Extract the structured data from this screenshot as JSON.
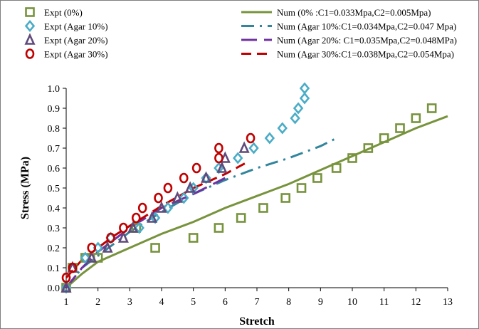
{
  "chart_data": {
    "type": "scatter",
    "title": "",
    "xlabel": "Stretch",
    "ylabel": "Stress (MPa)",
    "xlim": [
      1,
      13
    ],
    "ylim": [
      0,
      1.0
    ],
    "x_ticks": [
      1,
      2,
      3,
      4,
      5,
      6,
      7,
      8,
      9,
      10,
      11,
      12,
      13
    ],
    "y_ticks": [
      0.0,
      0.1,
      0.2,
      0.3,
      0.4,
      0.5,
      0.6,
      0.7,
      0.8,
      0.9,
      1.0
    ],
    "y_tick_labels": [
      "0.0",
      "0.1",
      "0.2",
      "0.3",
      "0.4",
      "0.5",
      "0.6",
      "0.7",
      "0.8",
      "0.9",
      "1.0"
    ],
    "x_tick_labels": [
      "1",
      "2",
      "3",
      "4",
      "5",
      "6",
      "7",
      "8",
      "9",
      "10",
      "11",
      "12",
      "13"
    ],
    "grid": false,
    "legend_placement": "top",
    "series": [
      {
        "name": "Expt (0%)",
        "kind": "scatter",
        "marker": "square",
        "color": "#77933c",
        "x": [
          1,
          1.2,
          1.6,
          2.0,
          3.2,
          3.8,
          5.0,
          5.8,
          6.5,
          7.2,
          7.9,
          8.4,
          8.9,
          9.5,
          10.0,
          10.5,
          11.0,
          11.5,
          12.0,
          12.5
        ],
        "y": [
          0.0,
          0.1,
          0.15,
          0.15,
          0.3,
          0.2,
          0.25,
          0.3,
          0.35,
          0.4,
          0.45,
          0.5,
          0.55,
          0.6,
          0.65,
          0.7,
          0.75,
          0.8,
          0.85,
          0.9
        ]
      },
      {
        "name": "Expt (Agar 10%)",
        "kind": "scatter",
        "marker": "diamond",
        "color": "#4bacc6",
        "x": [
          1,
          1.6,
          2.0,
          2.4,
          3.3,
          3.8,
          4.2,
          4.7,
          5.0,
          5.4,
          5.8,
          6.4,
          6.9,
          7.4,
          7.8,
          8.2,
          8.3,
          8.5,
          8.5
        ],
        "y": [
          0.0,
          0.15,
          0.2,
          0.25,
          0.3,
          0.35,
          0.4,
          0.45,
          0.5,
          0.55,
          0.6,
          0.65,
          0.7,
          0.75,
          0.8,
          0.85,
          0.9,
          0.95,
          1.0
        ]
      },
      {
        "name": "Expt (Agar 20%)",
        "kind": "scatter",
        "marker": "triangle",
        "color": "#604a7b",
        "x": [
          1,
          1.2,
          1.8,
          2.3,
          2.8,
          3.1,
          3.7,
          4.0,
          4.5,
          4.9,
          5.4,
          5.9,
          6.0,
          6.6
        ],
        "y": [
          0.0,
          0.1,
          0.15,
          0.2,
          0.25,
          0.3,
          0.35,
          0.4,
          0.45,
          0.5,
          0.55,
          0.6,
          0.65,
          0.7
        ],
        "name_display": "Expt (Agar 20%)"
      },
      {
        "name": "Expt (Agar 30%)",
        "kind": "scatter",
        "marker": "circle",
        "color": "#c00000",
        "x": [
          1,
          1.2,
          1.8,
          2.4,
          2.8,
          3.2,
          3.4,
          3.9,
          4.2,
          4.7,
          5.1,
          5.8,
          5.8,
          6.8
        ],
        "y": [
          0.05,
          0.1,
          0.2,
          0.25,
          0.3,
          0.35,
          0.4,
          0.45,
          0.5,
          0.55,
          0.6,
          0.65,
          0.7,
          0.75
        ]
      },
      {
        "name": "Num (0% :C1=0.033Mpa,C2=0.005Mpa)",
        "kind": "line",
        "dash": "",
        "color": "#77933c",
        "width": 3,
        "x": [
          1,
          1.5,
          2,
          3,
          4,
          5,
          6,
          7,
          8,
          9,
          10,
          11,
          12,
          13
        ],
        "y": [
          0.0,
          0.07,
          0.13,
          0.2,
          0.27,
          0.33,
          0.4,
          0.46,
          0.52,
          0.59,
          0.66,
          0.73,
          0.8,
          0.86
        ]
      },
      {
        "name": "Num (Agar 10%:C1=0.034Mpa,C2=0.047 Mpa)",
        "kind": "line",
        "dash": "18,8,3,8",
        "color": "#31859c",
        "width": 3,
        "x": [
          1,
          1.5,
          2,
          3,
          4,
          5,
          6,
          7,
          8,
          9,
          9.5
        ],
        "y": [
          0.0,
          0.1,
          0.16,
          0.28,
          0.38,
          0.47,
          0.54,
          0.6,
          0.65,
          0.71,
          0.75
        ]
      },
      {
        "name": "Num (Agar 20%: C1=0.035Mpa,C2=0.048MPa)",
        "kind": "line",
        "dash": "22,10",
        "color": "#7030a0",
        "width": 3,
        "x": [
          1,
          1.5,
          2,
          3,
          4,
          5,
          6
        ],
        "y": [
          0.0,
          0.1,
          0.18,
          0.3,
          0.4,
          0.47,
          0.55
        ]
      },
      {
        "name": "Num (Agar 30%:C1=0.038Mpa,C2=0.054Mpa)",
        "kind": "line",
        "dash": "14,8",
        "color": "#c00000",
        "width": 3,
        "x": [
          1,
          1.5,
          2,
          2.5,
          3,
          4,
          5,
          6,
          6.7
        ],
        "y": [
          0.05,
          0.14,
          0.2,
          0.26,
          0.31,
          0.41,
          0.5,
          0.57,
          0.63
        ]
      }
    ]
  }
}
